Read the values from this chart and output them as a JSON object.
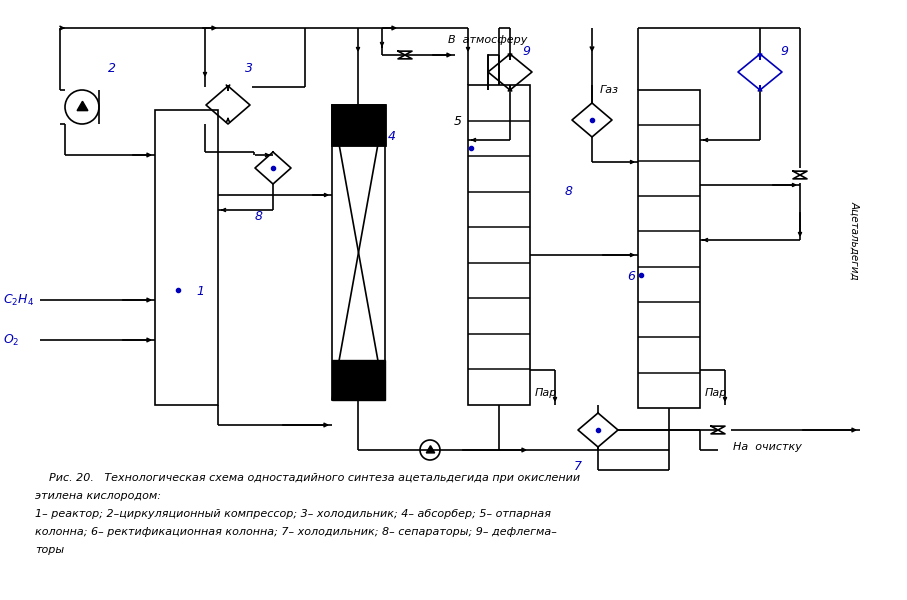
{
  "bg": "#ffffff",
  "lc": "#000000",
  "bc": "#0000bb",
  "cap1": "    Рис. 20.   Технологическая схема одностадийного синтеза ацетальдегида при окислении",
  "cap2": "этилена кислородом:",
  "cap3": "1– реактор; 2–циркуляционный компрессор; 3– холодильник; 4– абсорбер; 5– отпарная",
  "cap4": "колонна; 6– ректификационная колонна; 7– холодильник; 8– сепараторы; 9– дефлегма–",
  "cap5": "торы"
}
